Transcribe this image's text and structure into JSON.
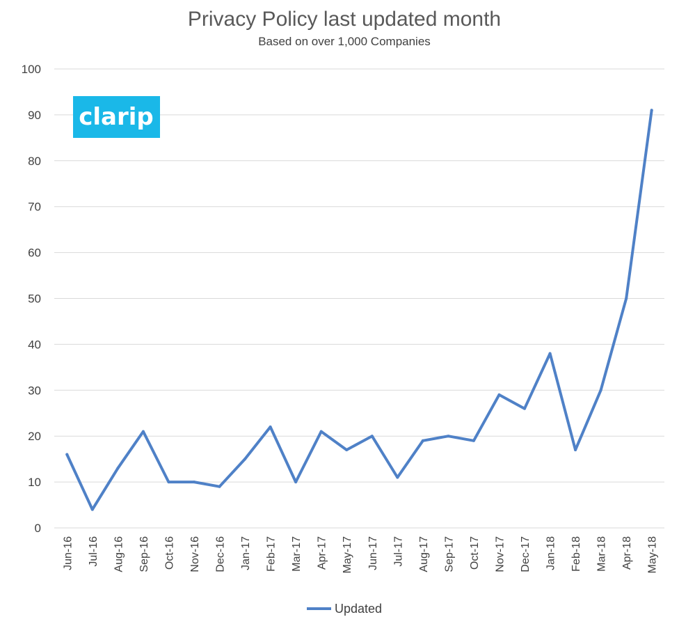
{
  "colors": {
    "series": "#4f81c7",
    "logo_bg": "#1ab8e8",
    "logo_text": "#ffffff"
  },
  "logo": {
    "text": "clarip"
  },
  "chart_data": {
    "type": "line",
    "title": "Privacy Policy last updated month",
    "subtitle": "Based on over 1,000 Companies",
    "xlabel": "",
    "ylabel": "",
    "ylim": [
      0,
      100
    ],
    "yticks": [
      0,
      10,
      20,
      30,
      40,
      50,
      60,
      70,
      80,
      90,
      100
    ],
    "grid": true,
    "legend_position": "bottom",
    "categories": [
      "Jun-16",
      "Jul-16",
      "Aug-16",
      "Sep-16",
      "Oct-16",
      "Nov-16",
      "Dec-16",
      "Jan-17",
      "Feb-17",
      "Mar-17",
      "Apr-17",
      "May-17",
      "Jun-17",
      "Jul-17",
      "Aug-17",
      "Sep-17",
      "Oct-17",
      "Nov-17",
      "Dec-17",
      "Jan-18",
      "Feb-18",
      "Mar-18",
      "Apr-18",
      "May-18"
    ],
    "series": [
      {
        "name": "Updated",
        "values": [
          16,
          4,
          13,
          21,
          10,
          10,
          9,
          15,
          22,
          10,
          21,
          17,
          20,
          11,
          19,
          20,
          19,
          29,
          26,
          38,
          17,
          30,
          50,
          91
        ]
      }
    ]
  }
}
